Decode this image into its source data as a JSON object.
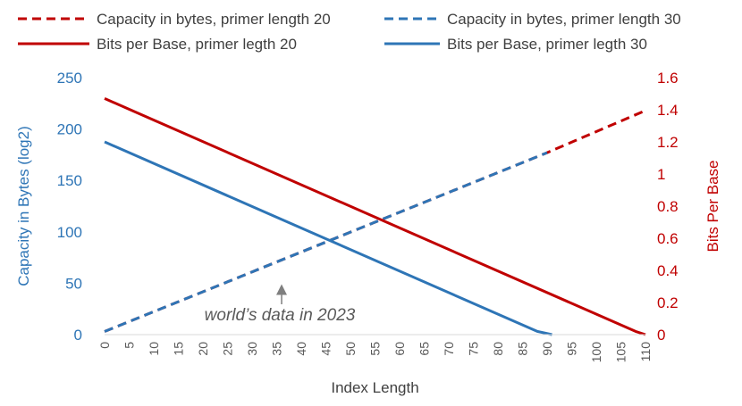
{
  "chart_data": {
    "type": "line",
    "xlabel": "Index Length",
    "ylabel_left": "Capacity in Bytes (log2)",
    "ylabel_right": "Bits Per Base",
    "x_ticks": [
      "0",
      "5",
      "10",
      "15",
      "20",
      "25",
      "30",
      "35",
      "40",
      "45",
      "50",
      "55",
      "60",
      "65",
      "70",
      "75",
      "80",
      "85",
      "90",
      "95",
      "100",
      "105",
      "110"
    ],
    "y_left_ticks": [
      "0",
      "50",
      "100",
      "150",
      "200",
      "250"
    ],
    "y_right_ticks": [
      "0",
      "0.2",
      "0.4",
      "0.6",
      "0.8",
      "1",
      "1.2",
      "1.4",
      "1.6"
    ],
    "xlim": [
      0,
      110
    ],
    "ylim_left": [
      0,
      250
    ],
    "ylim_right": [
      0,
      1.6
    ],
    "colors": {
      "red": "#C00000",
      "blue": "#2E75B6",
      "axis_text": "#595959",
      "grid_text": "#404040"
    },
    "series": [
      {
        "name": "Capacity in bytes, primer length 20",
        "axis": "left",
        "style": "dashed",
        "color": "#C00000",
        "x": [
          0,
          90,
          110
        ],
        "y": [
          3,
          177,
          218
        ]
      },
      {
        "name": "Capacity in bytes,  primer length 30",
        "axis": "left",
        "style": "dashed",
        "color": "#2E75B6",
        "x": [
          0,
          90
        ],
        "y": [
          3,
          177
        ]
      },
      {
        "name": "Bits per Base, primer legth 20",
        "axis": "right",
        "style": "solid",
        "color": "#C00000",
        "x": [
          0,
          108,
          110
        ],
        "y": [
          1.47,
          0.02,
          0.0
        ]
      },
      {
        "name": "Bits per Base, primer legth 30",
        "axis": "right",
        "style": "solid",
        "color": "#2E75B6",
        "x": [
          0,
          88,
          91
        ],
        "y": [
          1.2,
          0.02,
          0.0
        ]
      }
    ],
    "annotation": {
      "text": "world’s data in 2023",
      "x": 36,
      "y": 49
    }
  }
}
